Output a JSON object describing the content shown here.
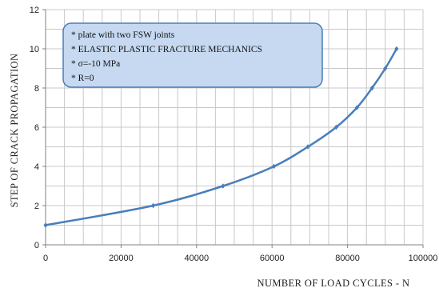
{
  "chart_data": {
    "type": "line",
    "x": [
      0,
      28500,
      47000,
      60500,
      69500,
      77000,
      82500,
      86500,
      90000,
      93000
    ],
    "series": [
      {
        "values": [
          1,
          2,
          3,
          4,
          5,
          6,
          7,
          8,
          9,
          10
        ]
      }
    ],
    "xlabel": "NUMBER  OF  LOAD  CYCLES - N",
    "ylabel": "STEP  OF  CRACK  PROPAGATION",
    "xlim": [
      0,
      100000
    ],
    "ylim": [
      0,
      12
    ],
    "x_ticks": [
      "0",
      "20000",
      "40000",
      "60000",
      "80000",
      "100000"
    ],
    "y_ticks": [
      "0",
      "2",
      "4",
      "6",
      "8",
      "10",
      "12"
    ],
    "grid": true,
    "annotation_box": {
      "lines": [
        "* plate with two FSW joints",
        "* ELASTIC PLASTIC FRACTURE MECHANICS",
        "* σ=-10 MPa",
        "* R=0"
      ]
    },
    "colors": {
      "line": "#4a7ebb",
      "grid": "#c8c8c8",
      "box_fill": "#c6d9f1",
      "box_stroke": "#4a7ebb"
    }
  }
}
